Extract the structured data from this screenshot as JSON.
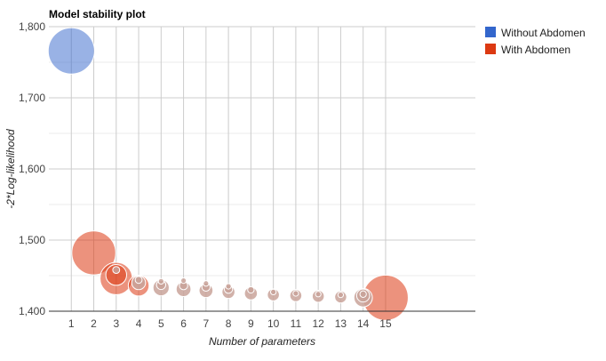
{
  "chart_data": {
    "type": "scatter",
    "title": "Model stability plot",
    "xlabel": "Number of parameters",
    "ylabel": "-2*Log-likelihood",
    "xlim": [
      0,
      19
    ],
    "ylim": [
      1400,
      1800
    ],
    "x_ticks": [
      1,
      2,
      3,
      4,
      5,
      6,
      7,
      8,
      9,
      10,
      11,
      12,
      13,
      14,
      15
    ],
    "y_ticks": [
      1400,
      1500,
      1600,
      1700,
      1800
    ],
    "y_tick_labels": [
      "1,400",
      "1,500",
      "1,600",
      "1,700",
      "1,800"
    ],
    "grid": true,
    "legend_position": "right",
    "series": [
      {
        "name": "Without Abdomen",
        "color": "#3366cc",
        "points": [
          {
            "x": 1,
            "y": 1766,
            "size": 1.0
          }
        ]
      },
      {
        "name": "With Abdomen",
        "color": "#dc3912",
        "points": [
          {
            "x": 2,
            "y": 1482,
            "size": 0.95
          },
          {
            "x": 3,
            "y": 1446,
            "size": 0.7
          },
          {
            "x": 3,
            "y": 1451,
            "size": 0.45
          },
          {
            "x": 3,
            "y": 1458,
            "size": 0.15
          },
          {
            "x": 4,
            "y": 1436,
            "size": 0.45
          },
          {
            "x": 4,
            "y": 1440,
            "size": 0.3
          },
          {
            "x": 4,
            "y": 1444,
            "size": 0.15
          },
          {
            "x": 5,
            "y": 1433,
            "size": 0.35
          },
          {
            "x": 5,
            "y": 1437,
            "size": 0.2
          },
          {
            "x": 5,
            "y": 1442,
            "size": 0.12
          },
          {
            "x": 6,
            "y": 1431,
            "size": 0.32
          },
          {
            "x": 6,
            "y": 1436,
            "size": 0.18
          },
          {
            "x": 6,
            "y": 1443,
            "size": 0.12
          },
          {
            "x": 7,
            "y": 1429,
            "size": 0.3
          },
          {
            "x": 7,
            "y": 1434,
            "size": 0.18
          },
          {
            "x": 7,
            "y": 1439,
            "size": 0.12
          },
          {
            "x": 8,
            "y": 1427,
            "size": 0.28
          },
          {
            "x": 8,
            "y": 1431,
            "size": 0.18
          },
          {
            "x": 8,
            "y": 1435,
            "size": 0.12
          },
          {
            "x": 9,
            "y": 1425,
            "size": 0.28
          },
          {
            "x": 9,
            "y": 1430,
            "size": 0.14
          },
          {
            "x": 10,
            "y": 1423,
            "size": 0.26
          },
          {
            "x": 10,
            "y": 1427,
            "size": 0.12
          },
          {
            "x": 11,
            "y": 1422,
            "size": 0.26
          },
          {
            "x": 11,
            "y": 1425,
            "size": 0.12
          },
          {
            "x": 12,
            "y": 1421,
            "size": 0.26
          },
          {
            "x": 12,
            "y": 1424,
            "size": 0.12
          },
          {
            "x": 13,
            "y": 1420,
            "size": 0.26
          },
          {
            "x": 13,
            "y": 1423,
            "size": 0.12
          },
          {
            "x": 14,
            "y": 1419,
            "size": 0.4
          },
          {
            "x": 14,
            "y": 1422,
            "size": 0.28
          },
          {
            "x": 14,
            "y": 1424,
            "size": 0.14
          },
          {
            "x": 15,
            "y": 1419,
            "size": 0.98
          }
        ]
      }
    ]
  }
}
